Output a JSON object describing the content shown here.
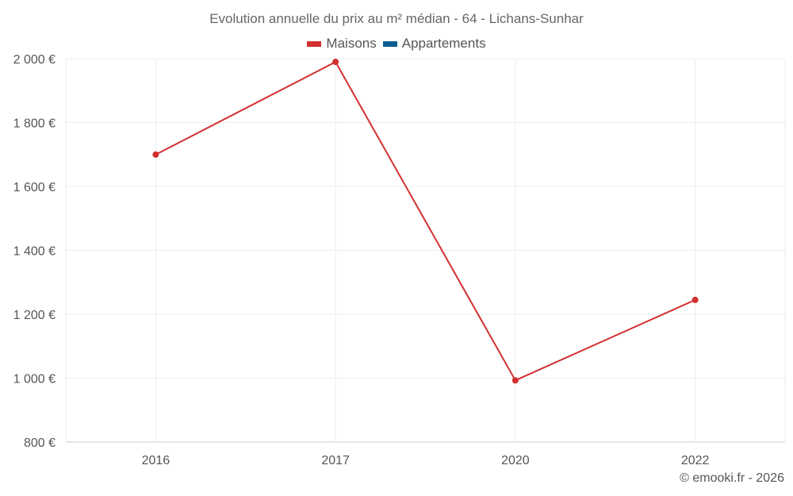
{
  "chart_data": {
    "type": "line",
    "title": "Evolution annuelle du prix au m² médian - 64 - Lichans-Sunhar",
    "categories": [
      "2016",
      "2017",
      "2020",
      "2022"
    ],
    "series": [
      {
        "name": "Maisons",
        "color": "#d32f2f",
        "values": [
          1700,
          1990,
          993,
          1245
        ]
      },
      {
        "name": "Appartements",
        "color": "#0d5e8f",
        "values": [
          null,
          null,
          null,
          null
        ]
      }
    ],
    "ylim": [
      800,
      2000
    ],
    "yticks": [
      800,
      1000,
      1200,
      1400,
      1600,
      1800,
      2000
    ],
    "ytick_labels": [
      "800 €",
      "1 000 €",
      "1 200 €",
      "1 400 €",
      "1 600 €",
      "1 800 €",
      "2 000 €"
    ],
    "xlabel": "",
    "ylabel": "",
    "grid": true,
    "legend": "top-center"
  },
  "credit": "© emooki.fr - 2026"
}
